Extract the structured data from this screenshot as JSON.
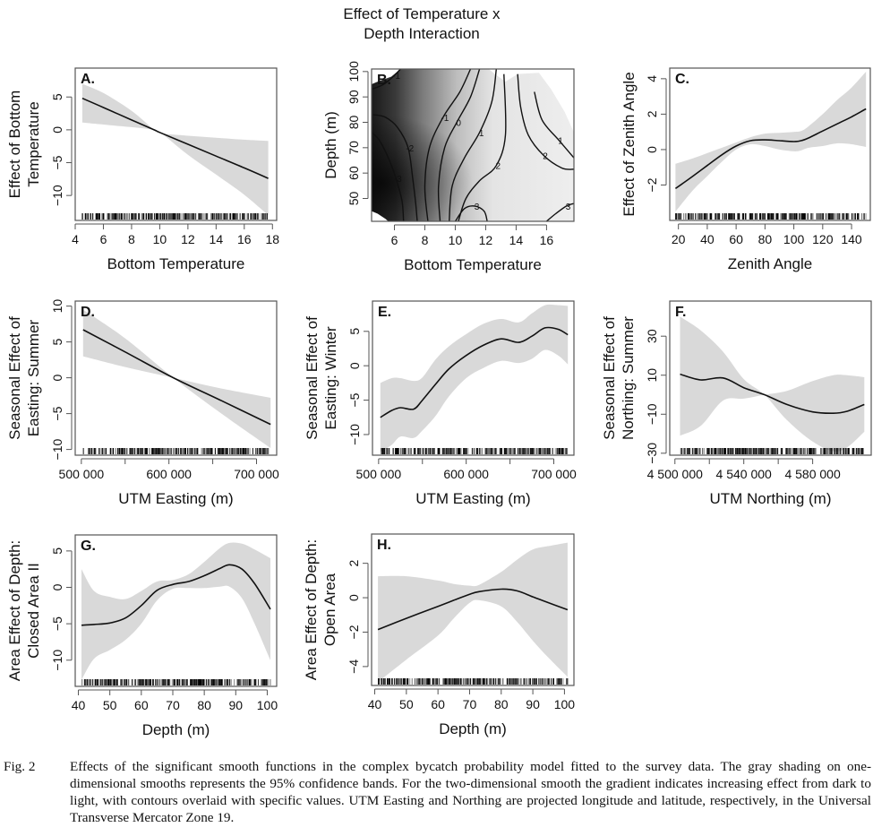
{
  "figure_title": [
    "Effect of Temperature x",
    "Depth Interaction"
  ],
  "caption": {
    "label": "Fig. 2",
    "text": "Effects of the significant smooth functions in the complex bycatch probability model fitted to the survey data. The gray shading on one-dimensional smooths represents the 95% confidence bands. For the two-dimensional smooth the gradient indicates increasing effect from dark to light, with contours overlaid with specific values. UTM Easting and Northing are projected longitude and latitude, respectively, in the Universal Transverse Mercator Zone 19."
  },
  "colors": {
    "band": "#d9d9d9",
    "line": "#111111",
    "frame": "#555555"
  },
  "chart_data": [
    {
      "panel": "A.",
      "type": "line",
      "title": "",
      "xlabel": "Bottom Temperature",
      "ylabel": [
        "Effect of Bottom",
        "Temperature"
      ],
      "xlim": [
        4,
        18.3
      ],
      "ylim": [
        -13.8,
        9.4
      ],
      "xticks": [
        4,
        6,
        8,
        10,
        12,
        14,
        16,
        18
      ],
      "xtick_labels": [
        "4",
        "6",
        "8",
        "10",
        "12",
        "14",
        "16",
        "18"
      ],
      "yticks": [
        5,
        0,
        -5,
        -10
      ],
      "ytick_labels": [
        "5",
        "0",
        "−5",
        "−10"
      ],
      "x": [
        4.5,
        6,
        8,
        9.6,
        10,
        12,
        14,
        16,
        17.7
      ],
      "fit": [
        4.8,
        3.4,
        1.5,
        0.0,
        -0.4,
        -2.2,
        -4.0,
        -5.8,
        -7.4
      ],
      "lower": [
        1.1,
        0.8,
        0.4,
        0.0,
        -0.5,
        -0.9,
        -1.2,
        -1.5,
        -1.7
      ],
      "upper": [
        7.0,
        5.6,
        2.9,
        0.0,
        -0.3,
        -3.8,
        -6.8,
        -9.9,
        -13.0
      ],
      "rug": {
        "range": [
          4.5,
          17.7
        ],
        "density": "dense 5-14, sparse above 15"
      }
    },
    {
      "panel": "B.",
      "type": "heatmap",
      "title": "Effect of Temperature x Depth Interaction",
      "xlabel": "Bottom Temperature",
      "ylabel": [
        "Depth (m)"
      ],
      "xlim": [
        4.5,
        17.8
      ],
      "ylim": [
        41,
        101
      ],
      "xticks": [
        6,
        8,
        10,
        12,
        14,
        16
      ],
      "xtick_labels": [
        "6",
        "8",
        "10",
        "12",
        "14",
        "16"
      ],
      "yticks": [
        50,
        60,
        70,
        80,
        90,
        100
      ],
      "ytick_labels": [
        "50",
        "60",
        "70",
        "80",
        "90",
        "100"
      ],
      "gradient": "dark = low effect, light = high effect",
      "contours": [
        {
          "level": "-1",
          "points": [
            [
              4.5,
              93
            ],
            [
              5.3,
              95
            ],
            [
              6.0,
              98.5
            ],
            [
              6.4,
              101
            ]
          ]
        },
        {
          "level": "-2",
          "points": [
            [
              4.6,
              83
            ],
            [
              5.4,
              82
            ],
            [
              6.2,
              78
            ],
            [
              6.9,
              70
            ],
            [
              7.2,
              58
            ],
            [
              7.4,
              48
            ],
            [
              7.5,
              41
            ]
          ]
        },
        {
          "level": "-3",
          "points": [
            [
              4.5,
              76
            ],
            [
              5.0,
              73
            ],
            [
              5.6,
              66
            ],
            [
              6.1,
              58
            ],
            [
              6.5,
              49
            ],
            [
              6.6,
              41
            ]
          ]
        },
        {
          "level": "-1",
          "points": [
            [
              8.2,
              41
            ],
            [
              8.0,
              55
            ],
            [
              8.3,
              70
            ],
            [
              9.2,
              82
            ],
            [
              10.3,
              92
            ],
            [
              11.0,
              101
            ]
          ]
        },
        {
          "level": "0",
          "points": [
            [
              9.0,
              41
            ],
            [
              8.9,
              55
            ],
            [
              9.3,
              70
            ],
            [
              10.1,
              80
            ],
            [
              11.0,
              90
            ],
            [
              11.6,
              101
            ]
          ]
        },
        {
          "level": "1",
          "points": [
            [
              9.6,
              41
            ],
            [
              9.8,
              55
            ],
            [
              10.6,
              66
            ],
            [
              11.6,
              76
            ],
            [
              12.4,
              88
            ],
            [
              12.7,
              101
            ]
          ]
        },
        {
          "level": "2",
          "points": [
            [
              10.2,
              41
            ],
            [
              10.7,
              50
            ],
            [
              11.6,
              57
            ],
            [
              12.7,
              63
            ],
            [
              13.3,
              75
            ],
            [
              13.2,
              99
            ]
          ]
        },
        {
          "level": "3",
          "points": [
            [
              10.0,
              41
            ],
            [
              10.6,
              46
            ],
            [
              11.3,
              47
            ],
            [
              11.9,
              45
            ],
            [
              12.1,
              41
            ]
          ]
        },
        {
          "level": "2",
          "points": [
            [
              14.1,
              99
            ],
            [
              14.3,
              86
            ],
            [
              14.8,
              75
            ],
            [
              15.8,
              67
            ],
            [
              17.0,
              62
            ],
            [
              17.8,
              61.5
            ]
          ]
        },
        {
          "level": "1",
          "points": [
            [
              15.2,
              92
            ],
            [
              15.7,
              81
            ],
            [
              16.8,
              73
            ],
            [
              17.8,
              66
            ]
          ]
        },
        {
          "level": "3",
          "points": [
            [
              16.0,
              41
            ],
            [
              16.6,
              44
            ],
            [
              17.3,
              47
            ],
            [
              17.8,
              48
            ]
          ]
        }
      ]
    },
    {
      "panel": "C.",
      "type": "line",
      "xlabel": "Zenith Angle",
      "ylabel": [
        "Effect of Zenith Angle"
      ],
      "xlim": [
        14,
        153
      ],
      "ylim": [
        -4.0,
        4.6
      ],
      "xticks": [
        20,
        40,
        60,
        80,
        100,
        120,
        140
      ],
      "xtick_labels": [
        "20",
        "40",
        "60",
        "80",
        "100",
        "120",
        "140"
      ],
      "yticks": [
        4,
        2,
        0,
        -2
      ],
      "ytick_labels": [
        "4",
        "2",
        "0",
        "−2"
      ],
      "x": [
        18,
        30,
        40,
        50,
        60,
        70,
        80,
        90,
        100,
        105,
        110,
        120,
        130,
        140,
        150
      ],
      "fit": [
        -2.2,
        -1.5,
        -0.9,
        -0.3,
        0.2,
        0.5,
        0.55,
        0.5,
        0.45,
        0.5,
        0.65,
        1.05,
        1.45,
        1.85,
        2.3
      ],
      "lower": [
        -3.5,
        -2.3,
        -1.5,
        -0.7,
        0.0,
        0.3,
        0.2,
        0.0,
        -0.1,
        -0.05,
        0.1,
        0.2,
        0.35,
        0.3,
        0.15
      ],
      "upper": [
        -0.8,
        -0.5,
        -0.2,
        0.1,
        0.4,
        0.7,
        0.9,
        0.95,
        1.0,
        1.05,
        1.3,
        2.0,
        2.8,
        3.5,
        4.4
      ]
    },
    {
      "panel": "D.",
      "type": "line",
      "xlabel": "UTM Easting (m)",
      "ylabel": [
        "Seasonal Effect of",
        "Easting: Summer"
      ],
      "xlim": [
        493000,
        723000
      ],
      "ylim": [
        -10.8,
        10.7
      ],
      "xticks": [
        500000,
        550000,
        600000,
        650000,
        700000
      ],
      "xtick_labels": [
        "500 000",
        "",
        "600 000",
        "",
        "700 000"
      ],
      "yticks": [
        10,
        5,
        0,
        -5,
        -10
      ],
      "ytick_labels": [
        "10",
        "5",
        "0",
        "−5",
        "−10"
      ],
      "x": [
        502000,
        550000,
        605000,
        660000,
        716000
      ],
      "fit": [
        6.7,
        3.6,
        0.0,
        -3.2,
        -6.5
      ],
      "lower": [
        3.0,
        1.5,
        0.0,
        -1.5,
        -2.8
      ],
      "upper": [
        9.5,
        5.5,
        0.0,
        -5.0,
        -9.8
      ]
    },
    {
      "panel": "E.",
      "type": "line",
      "xlabel": "UTM Easting (m)",
      "ylabel": [
        "Seasonal Effect of",
        "Easting: Winter"
      ],
      "xlim": [
        493000,
        723000
      ],
      "ylim": [
        -13.0,
        9.4
      ],
      "xticks": [
        500000,
        550000,
        600000,
        650000,
        700000
      ],
      "xtick_labels": [
        "500 000",
        "",
        "600 000",
        "",
        "700 000"
      ],
      "yticks": [
        5,
        0,
        -5,
        -10
      ],
      "ytick_labels": [
        "5",
        "0",
        "−5",
        "−10"
      ],
      "x": [
        502000,
        515000,
        525000,
        540000,
        550000,
        565000,
        580000,
        600000,
        620000,
        640000,
        660000,
        675000,
        690000,
        705000,
        716000
      ],
      "fit": [
        -7.5,
        -6.5,
        -6.1,
        -6.3,
        -5.0,
        -2.7,
        -0.5,
        1.5,
        3.0,
        3.9,
        3.4,
        4.3,
        5.5,
        5.3,
        4.5
      ],
      "lower": [
        -12.5,
        -11.5,
        -10.3,
        -10.5,
        -9.4,
        -7.3,
        -4.5,
        -1.8,
        -0.3,
        0.7,
        0.4,
        1.0,
        2.3,
        1.5,
        0.2
      ],
      "upper": [
        -2.5,
        -1.8,
        -1.8,
        -2.2,
        -1.7,
        0.9,
        2.8,
        4.6,
        6.1,
        6.8,
        6.3,
        7.6,
        8.8,
        8.8,
        8.7
      ]
    },
    {
      "panel": "F.",
      "type": "line",
      "xlabel": "UTM Northing (m)",
      "ylabel": [
        "Seasonal Effect of",
        "Northing: Summer"
      ],
      "xlim": [
        4497000,
        4614000
      ],
      "ylim": [
        -31.0,
        48.0
      ],
      "xticks": [
        4500000,
        4520000,
        4540000,
        4560000,
        4580000
      ],
      "xtick_labels": [
        "4 500 000",
        "",
        "4 540 000",
        "",
        "4 580 000"
      ],
      "yticks": [
        30,
        10,
        -10,
        -30
      ],
      "ytick_labels": [
        "30",
        "10",
        "−10",
        "−30"
      ],
      "x": [
        4503000,
        4515000,
        4528000,
        4540000,
        4552000,
        4565000,
        4580000,
        4592000,
        4600000,
        4610000
      ],
      "fit": [
        10.5,
        7.6,
        8.6,
        3.6,
        0.0,
        -5.0,
        -8.8,
        -9.5,
        -8.5,
        -5.0
      ],
      "lower": [
        -21.0,
        -16.0,
        -3.0,
        -2.0,
        0.0,
        2.0,
        7.0,
        10.0,
        10.0,
        9.0
      ],
      "upper": [
        40.0,
        33.0,
        22.0,
        8.0,
        0.0,
        -13.0,
        -24.0,
        -29.0,
        -27.0,
        -19.0
      ]
    },
    {
      "panel": "G.",
      "type": "line",
      "xlabel": "Depth (m)",
      "ylabel": [
        "Area Effect of Depth:",
        "Closed Area II"
      ],
      "xlim": [
        39,
        103
      ],
      "ylim": [
        -13.6,
        7.2
      ],
      "xticks": [
        40,
        50,
        60,
        70,
        80,
        90,
        100
      ],
      "xtick_labels": [
        "40",
        "50",
        "60",
        "70",
        "80",
        "90",
        "100"
      ],
      "yticks": [
        5,
        0,
        -5,
        -10
      ],
      "ytick_labels": [
        "5",
        "0",
        "−5",
        "−10"
      ],
      "x": [
        41,
        45,
        50,
        55,
        60,
        65,
        70,
        75,
        80,
        85,
        88,
        92,
        96,
        101
      ],
      "fit": [
        -5.2,
        -5.1,
        -4.9,
        -4.2,
        -2.5,
        -0.4,
        0.4,
        0.8,
        1.6,
        2.6,
        3.1,
        2.5,
        0.5,
        -3.0
      ],
      "lower": [
        -12.7,
        -9.8,
        -8.6,
        -7.2,
        -5.0,
        -1.8,
        -0.2,
        -0.1,
        -0.1,
        0.1,
        0.1,
        -1.5,
        -5.0,
        -10.0
      ],
      "upper": [
        2.5,
        -0.5,
        -1.3,
        -1.6,
        -0.5,
        0.8,
        1.0,
        1.8,
        3.5,
        5.4,
        6.1,
        6.0,
        5.2,
        4.0
      ]
    },
    {
      "panel": "H.",
      "type": "line",
      "xlabel": "Depth (m)",
      "ylabel": [
        "Area Effect of Depth:",
        "Open Area"
      ],
      "xlim": [
        39,
        103
      ],
      "ylim": [
        -5.1,
        3.7
      ],
      "xticks": [
        40,
        50,
        60,
        70,
        80,
        90,
        100
      ],
      "xtick_labels": [
        "40",
        "50",
        "60",
        "70",
        "80",
        "90",
        "100"
      ],
      "yticks": [
        2,
        0,
        -2,
        -4
      ],
      "ytick_labels": [
        "2",
        "0",
        "−2",
        "−4"
      ],
      "x": [
        41,
        50,
        60,
        65,
        70,
        73,
        80,
        85,
        90,
        95,
        101
      ],
      "fit": [
        -1.85,
        -1.2,
        -0.5,
        -0.15,
        0.2,
        0.35,
        0.5,
        0.4,
        0.05,
        -0.3,
        -0.7
      ],
      "lower": [
        -4.9,
        -3.6,
        -2.2,
        -1.2,
        -0.3,
        -0.15,
        -0.5,
        -1.4,
        -2.5,
        -3.5,
        -4.6
      ],
      "upper": [
        1.25,
        1.25,
        1.0,
        0.8,
        0.7,
        0.75,
        1.5,
        2.2,
        2.8,
        3.0,
        3.2
      ]
    }
  ]
}
